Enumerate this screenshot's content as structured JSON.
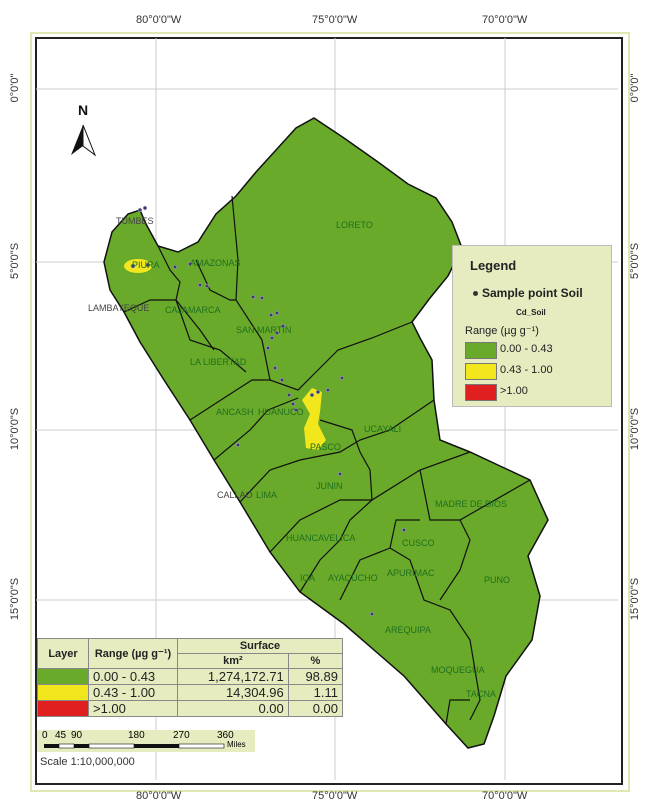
{
  "graticule": {
    "longitudes": [
      "80°0'0\"W",
      "75°0'0\"W",
      "70°0'0\"W"
    ],
    "latitudes": [
      "0°0'0\"",
      "5°0'0\"S",
      "10°0'0\"S",
      "15°0'0\"S"
    ]
  },
  "north_arrow": {
    "label": "N"
  },
  "regions": [
    "TUMBES",
    "PIURA",
    "LAMBAYEQUE",
    "AMAZONAS",
    "CAJAMARCA",
    "LORETO",
    "SAN MARTIN",
    "LA LIBERTAD",
    "ANCASH",
    "HUANUCO",
    "PASCO",
    "UCAYALI",
    "CALLAO",
    "LIMA",
    "JUNIN",
    "MADRE DE DIOS",
    "HUANCAVELICA",
    "CUSCO",
    "ICA",
    "AYACUCHO",
    "APURIMAC",
    "PUNO",
    "AREQUIPA",
    "MOQUEGUA",
    "TACNA"
  ],
  "legend": {
    "title": "Legend",
    "point_label": "Sample point Soil",
    "field": "Cd_Soil",
    "range_title": "Range (µg g⁻¹)",
    "classes": [
      {
        "label": "0.00 - 0.43",
        "color": "#6aaa2a"
      },
      {
        "label": "0.43 - 1.00",
        "color": "#f2e61c"
      },
      {
        "label": ">1.00",
        "color": "#e02020"
      }
    ]
  },
  "table": {
    "headers": {
      "layer": "Layer",
      "range": "Range (µg g⁻¹)",
      "surface": "Surface",
      "km2": "km²",
      "pct": "%"
    },
    "rows": [
      {
        "color": "#6aaa2a",
        "range": "0.00 - 0.43",
        "km2": "1,274,172.71",
        "pct": "98.89"
      },
      {
        "color": "#f2e61c",
        "range": "0.43 - 1.00",
        "km2": "14,304.96",
        "pct": "1.11"
      },
      {
        "color": "#e02020",
        "range": ">1.00",
        "km2": "0.00",
        "pct": "0.00"
      }
    ]
  },
  "scale_bar": {
    "ticks": [
      "0",
      "45",
      "90",
      "180",
      "270",
      "360"
    ],
    "unit": "Miles",
    "text": "Scale 1:10,000,000"
  }
}
